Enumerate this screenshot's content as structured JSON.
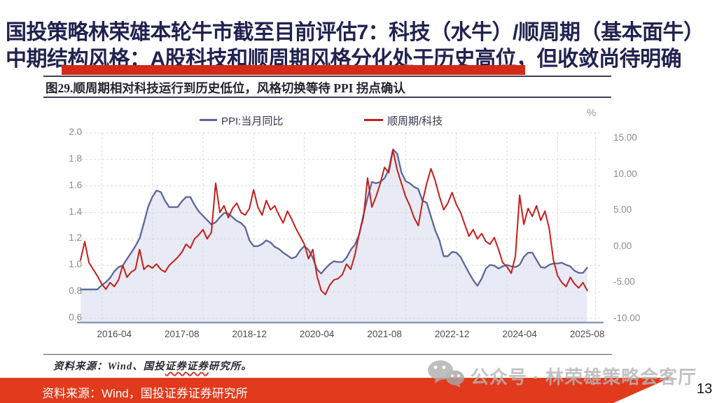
{
  "slide": {
    "title_line1": "国投策略林荣雄本轮牛市截至目前评估7：科技（水牛）/顺周期（基本面牛）",
    "title_line2": "中期结构风格：A股科技和顺周期风格分化处于历史高位，但收敛尚待明确",
    "accent_color": "#d42b19",
    "footer_bar_color": "#e23a1c",
    "footer_source": "资料来源：Wind，国投证券证券研究所",
    "watermark": "公众号 · 林荣雄策略会客厅",
    "watermark_icon": "wechat-icon",
    "page_number": "13"
  },
  "chart_card": {
    "title": "图29.顺周期相对科技运行到历史低位，风格切换等待 PPI 拐点确认",
    "source_prefix": "资料来源：Wind、国投",
    "source_wavy": "证券证券",
    "source_suffix": "研究所。",
    "unit_label": "%"
  },
  "chart_data": {
    "type": "line",
    "title": "图29.顺周期相对科技运行到历史低位，风格切换等待 PPI 拐点确认",
    "x_start": "2015-08",
    "x_frequency": "monthly",
    "x_tick_labels": [
      "2016-04",
      "2017-08",
      "2018-12",
      "2020-04",
      "2021-08",
      "2022-12",
      "2024-04",
      "2025-08"
    ],
    "x_tick_month_indices": [
      8,
      24,
      40,
      56,
      72,
      88,
      104,
      120
    ],
    "v_gridline_month_indices": [
      5,
      17,
      29,
      41,
      53,
      65,
      77,
      89,
      101,
      113,
      122
    ],
    "grid": true,
    "legend_position": "top",
    "left_axis": {
      "min": 0.6,
      "max": 2.0,
      "ticks": [
        2.0,
        1.8,
        1.6,
        1.4,
        1.2,
        1.0,
        0.8,
        0.6
      ]
    },
    "right_axis": {
      "min": -10,
      "max": 15,
      "unit": "%",
      "ticks": [
        15,
        10,
        5,
        0,
        -5,
        -10
      ]
    },
    "series": [
      {
        "name": "PPI:当月同比",
        "axis": "right",
        "color": "#5b6699",
        "fill": "#e4e8f3",
        "values": [
          -5.9,
          -5.9,
          -5.9,
          -5.9,
          -5.9,
          -5.3,
          -4.9,
          -4.3,
          -3.4,
          -2.8,
          -2.6,
          -1.7,
          -0.8,
          0.1,
          1.2,
          3.3,
          5.5,
          6.9,
          7.8,
          7.6,
          6.4,
          5.5,
          5.5,
          5.5,
          6.3,
          6.9,
          6.9,
          5.8,
          4.9,
          4.3,
          3.7,
          3.1,
          3.4,
          4.1,
          4.7,
          4.6,
          4.1,
          3.6,
          3.3,
          2.7,
          0.9,
          0.1,
          0.1,
          0.4,
          0.9,
          0.6,
          0.0,
          -0.3,
          -0.8,
          -1.2,
          -1.6,
          -1.4,
          -0.5,
          0.1,
          -0.4,
          -1.5,
          -3.1,
          -3.7,
          -3.0,
          -2.4,
          -2.0,
          -2.1,
          -2.1,
          -1.5,
          -0.4,
          0.3,
          1.7,
          4.4,
          6.8,
          9.0,
          8.8,
          9.0,
          9.5,
          10.7,
          13.5,
          12.9,
          10.3,
          9.1,
          8.8,
          8.3,
          8.0,
          6.4,
          6.1,
          4.2,
          2.3,
          0.9,
          -1.3,
          -1.3,
          -0.7,
          -0.8,
          -1.4,
          -2.5,
          -3.6,
          -4.6,
          -5.4,
          -4.4,
          -3.0,
          -2.5,
          -2.6,
          -3.0,
          -2.7,
          -2.5,
          -2.7,
          -2.8,
          -2.5,
          -1.4,
          -0.8,
          -0.8,
          -1.8,
          -2.8,
          -2.9,
          -2.5,
          -2.3,
          -2.3,
          -2.2,
          -2.5,
          -2.7,
          -3.3,
          -3.6,
          -3.6,
          -2.9
        ]
      },
      {
        "name": "顺周期/科技",
        "axis": "left",
        "color": "#c41e1a",
        "values": [
          1.04,
          1.18,
          1.02,
          0.97,
          0.92,
          0.86,
          0.82,
          0.87,
          0.84,
          0.89,
          1.0,
          0.91,
          0.95,
          0.97,
          1.12,
          0.97,
          1.0,
          0.98,
          1.01,
          0.97,
          0.95,
          1.0,
          1.03,
          1.06,
          1.1,
          1.16,
          1.13,
          1.2,
          1.23,
          1.27,
          1.2,
          1.25,
          1.62,
          1.4,
          1.45,
          1.36,
          1.43,
          1.47,
          1.4,
          1.38,
          1.43,
          1.57,
          1.44,
          1.38,
          1.49,
          1.42,
          1.45,
          1.38,
          1.32,
          1.41,
          1.35,
          1.28,
          1.22,
          1.16,
          1.05,
          1.12,
          0.92,
          0.81,
          0.78,
          0.85,
          0.89,
          0.9,
          0.93,
          1.01,
          0.97,
          1.08,
          1.24,
          1.36,
          1.66,
          1.44,
          1.52,
          1.62,
          1.74,
          1.7,
          1.87,
          1.72,
          1.62,
          1.52,
          1.45,
          1.36,
          1.3,
          1.48,
          1.62,
          1.73,
          1.64,
          1.52,
          1.42,
          1.47,
          1.55,
          1.46,
          1.4,
          1.31,
          1.22,
          1.27,
          1.2,
          1.24,
          1.18,
          1.16,
          1.21,
          1.12,
          1.02,
          0.99,
          0.94,
          1.07,
          1.53,
          1.31,
          1.43,
          1.37,
          1.45,
          1.34,
          1.41,
          1.28,
          1.04,
          0.92,
          0.87,
          0.84,
          0.91,
          0.86,
          0.83,
          0.87,
          0.81
        ]
      }
    ]
  }
}
